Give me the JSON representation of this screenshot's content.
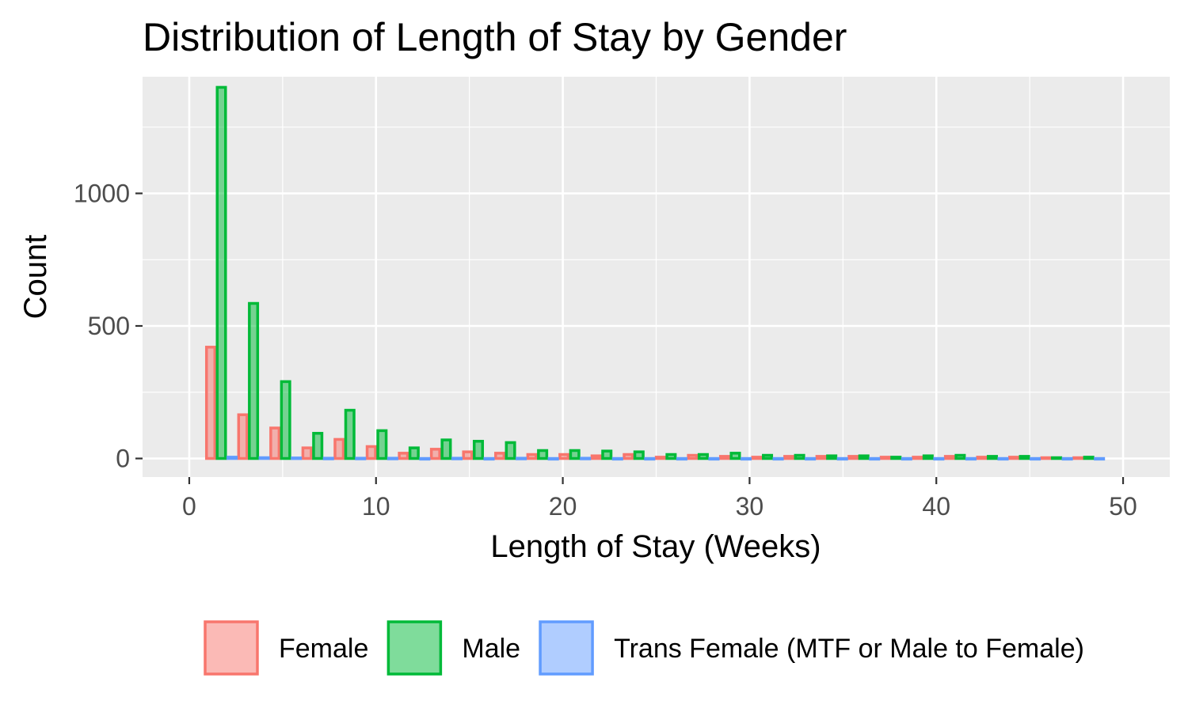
{
  "chart_data": {
    "type": "bar",
    "title": "Distribution of Length of Stay by Gender",
    "xlabel": "Length of Stay (Weeks)",
    "ylabel": "Count",
    "xlim": [
      -2.5,
      52.5
    ],
    "ylim": [
      -70,
      1440
    ],
    "x_ticks": [
      0,
      10,
      20,
      30,
      40,
      50
    ],
    "y_ticks": [
      0,
      500,
      1000
    ],
    "grid": true,
    "legend_position": "bottom",
    "bin_width": 1.72,
    "x": [
      1.72,
      3.44,
      5.16,
      6.88,
      8.6,
      10.32,
      12.04,
      13.76,
      15.48,
      17.2,
      18.92,
      20.64,
      22.36,
      24.08,
      25.8,
      27.52,
      29.24,
      30.96,
      32.68,
      34.4,
      36.12,
      37.84,
      39.56,
      41.28,
      43.0,
      44.72,
      46.44,
      48.16
    ],
    "series": [
      {
        "name": "Female",
        "fill": "#f8766d",
        "color": "#f8766d",
        "values": [
          420,
          165,
          115,
          40,
          72,
          45,
          20,
          35,
          25,
          20,
          15,
          15,
          10,
          15,
          5,
          12,
          8,
          5,
          8,
          8,
          8,
          5,
          5,
          8,
          5,
          5,
          3,
          3
        ]
      },
      {
        "name": "Male",
        "fill": "#00ba38",
        "color": "#00ba38",
        "values": [
          1400,
          585,
          290,
          95,
          182,
          105,
          40,
          70,
          65,
          60,
          30,
          30,
          28,
          25,
          15,
          15,
          20,
          12,
          12,
          10,
          10,
          5,
          10,
          12,
          8,
          8,
          3,
          5
        ]
      },
      {
        "name": "Trans Female (MTF or Male to Female)",
        "fill": "#619cff",
        "color": "#619cff",
        "values": [
          5,
          3,
          2,
          1,
          1,
          1,
          0,
          1,
          0,
          1,
          0,
          1,
          0,
          0,
          0,
          0,
          0,
          0,
          0,
          0,
          0,
          0,
          0,
          0,
          0,
          0,
          0,
          0
        ]
      }
    ]
  }
}
